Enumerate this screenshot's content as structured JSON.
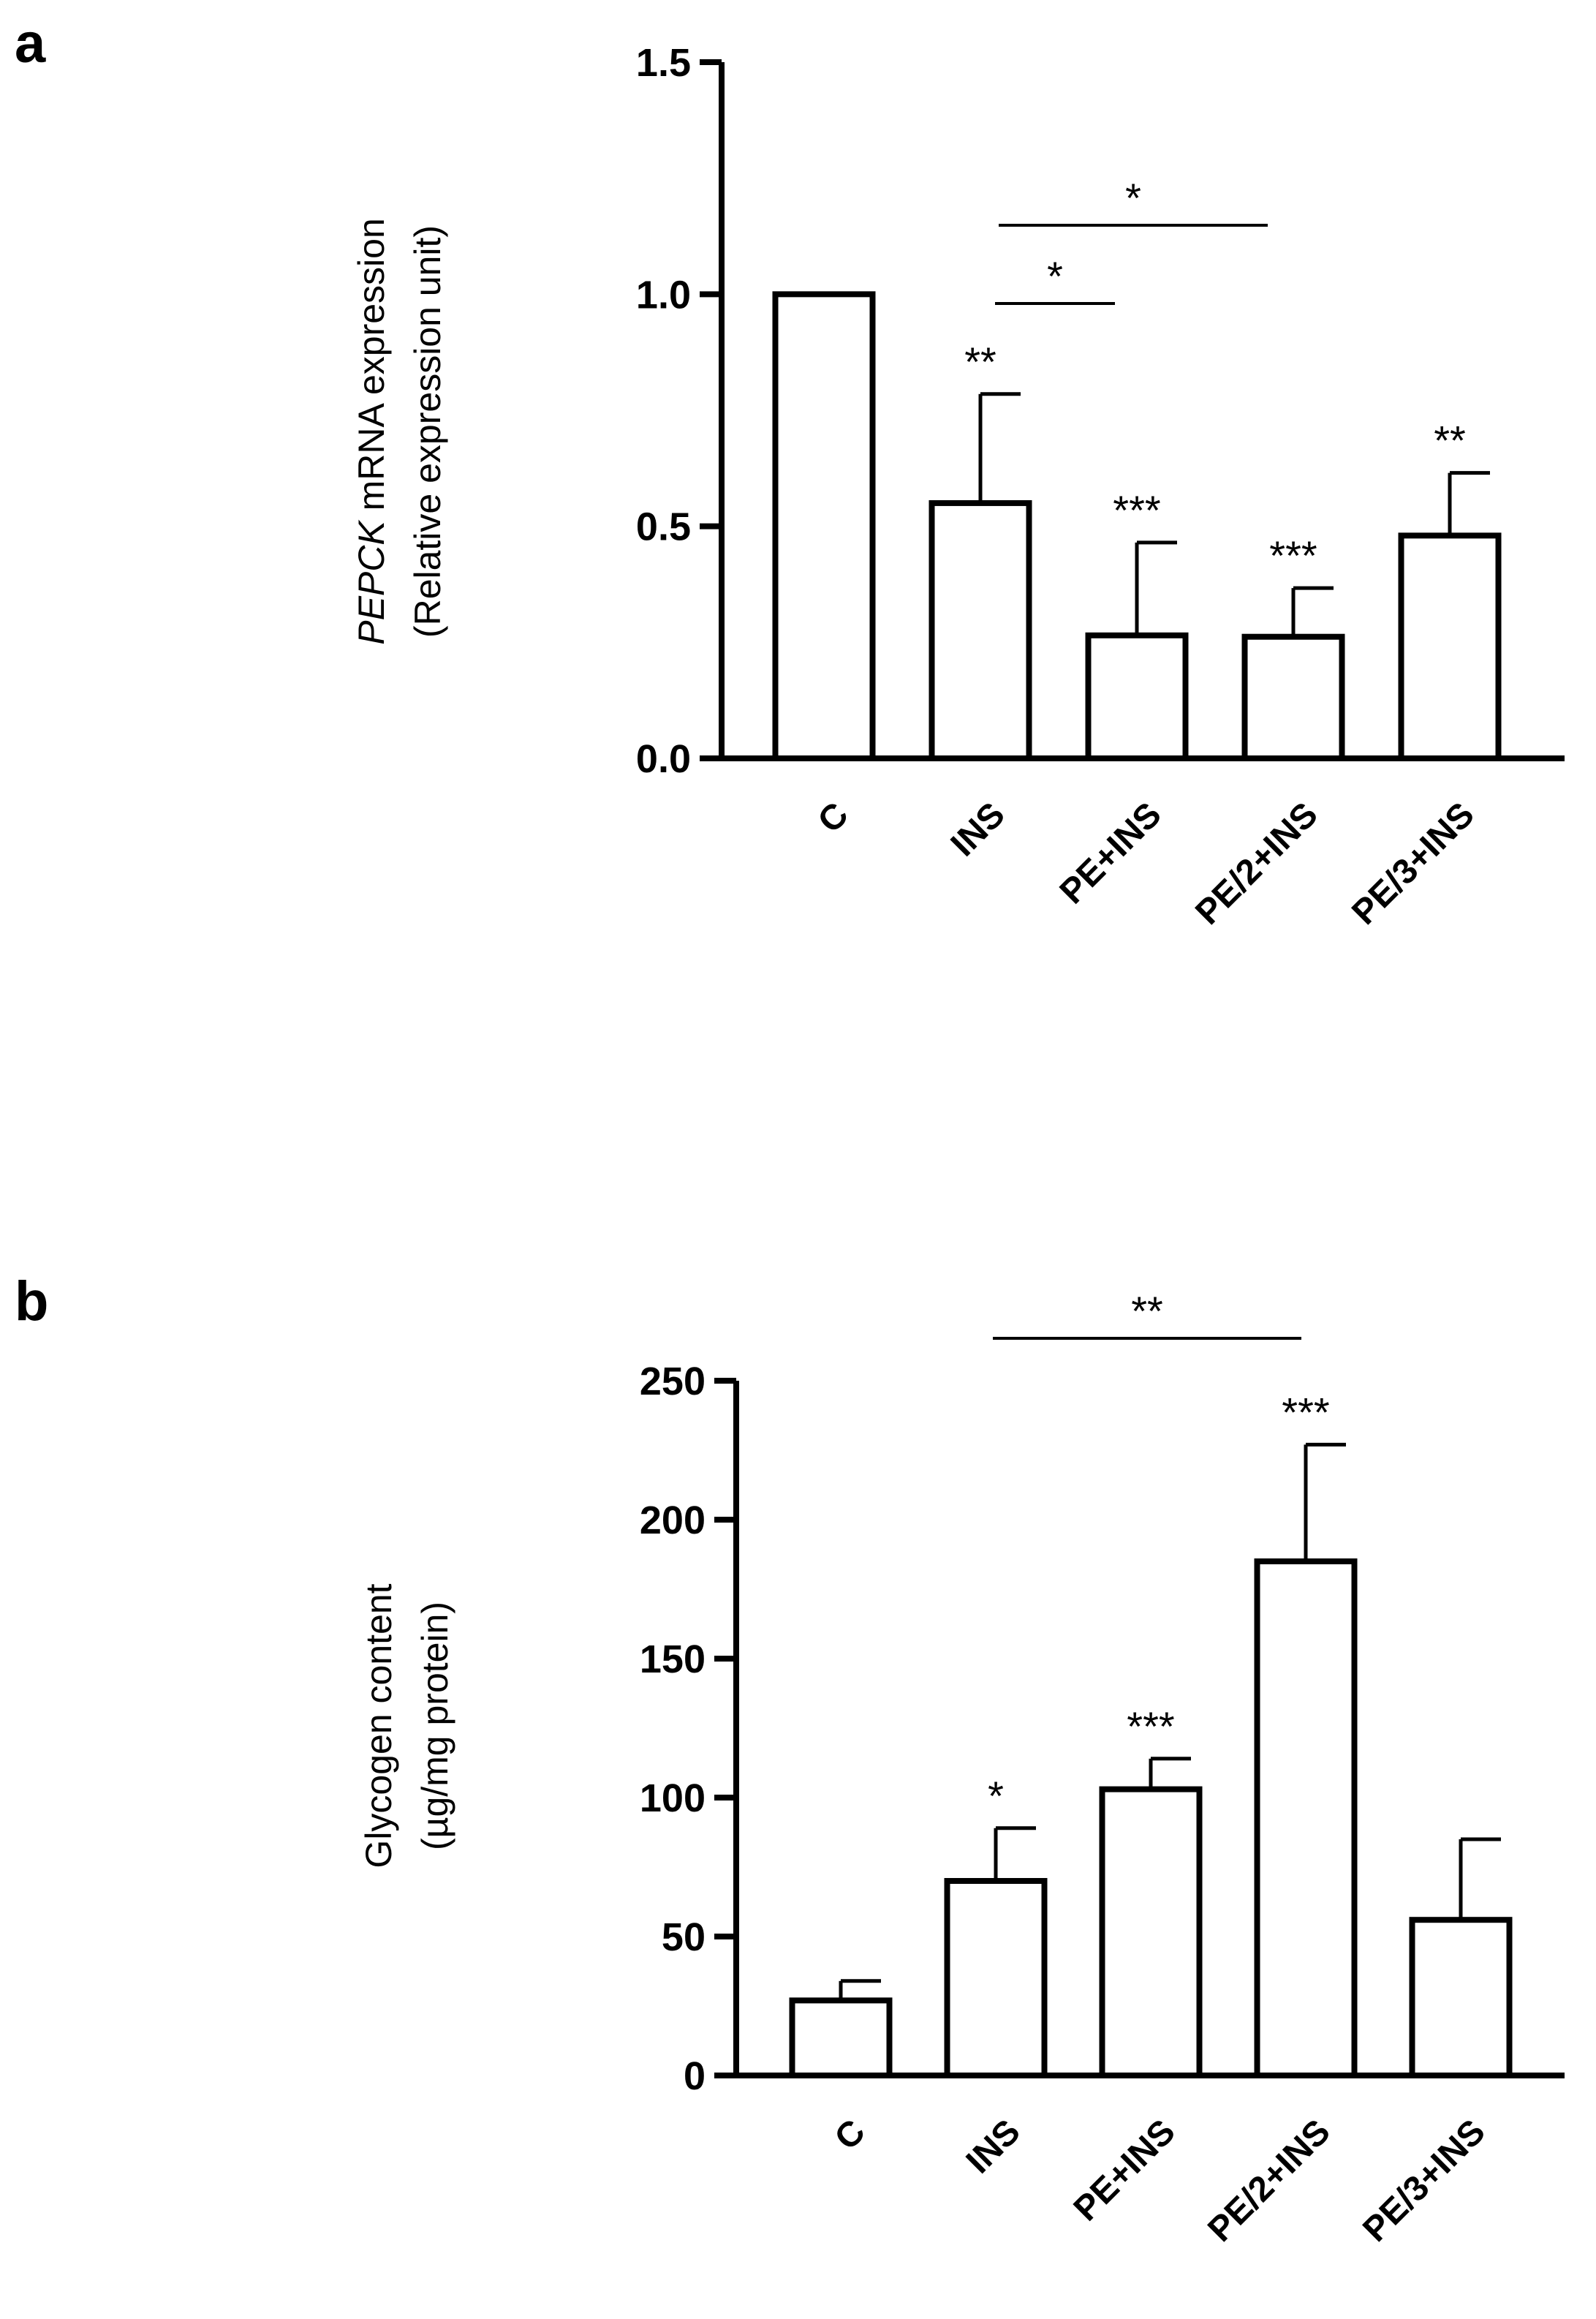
{
  "chart_data": [
    {
      "panel": "a",
      "type": "bar",
      "categories": [
        "C",
        "INS",
        "PE+INS",
        "PE/2+INS",
        "PE/3+INS"
      ],
      "values": [
        1.0,
        0.55,
        0.265,
        0.262,
        0.48
      ],
      "errors": [
        0,
        0.235,
        0.2,
        0.105,
        0.135
      ],
      "annotations": [
        "",
        "**",
        "***",
        "***",
        "**"
      ],
      "brackets": [
        {
          "from": 1,
          "to": 3,
          "label": "*"
        },
        {
          "from": 1,
          "to": 2,
          "label": "*"
        }
      ],
      "ylabel_italic": "PEPCK",
      "ylabel_rest": " mRNA expression",
      "ylabel_line2": "(Relative expression unit)",
      "ylim": [
        0,
        1.5
      ],
      "yticks": [
        0.0,
        0.5,
        1.0,
        1.5
      ],
      "ytick_labels": [
        "0.0",
        "0.5",
        "1.0",
        "1.5"
      ]
    },
    {
      "panel": "b",
      "type": "bar",
      "categories": [
        "C",
        "INS",
        "PE+INS",
        "PE/2+INS",
        "PE/3+INS"
      ],
      "values": [
        27,
        70,
        103,
        185,
        56
      ],
      "errors": [
        7,
        19,
        11,
        42,
        29
      ],
      "annotations": [
        "",
        "*",
        "***",
        "***",
        ""
      ],
      "brackets": [
        {
          "from": 1,
          "to": 3,
          "label": "**"
        }
      ],
      "ylabel_line1": "Glycogen content",
      "ylabel_line2": "(µg/mg protein)",
      "ylim": [
        0,
        250
      ],
      "yticks": [
        0,
        50,
        100,
        150,
        200,
        250
      ],
      "ytick_labels": [
        "0",
        "50",
        "100",
        "150",
        "200",
        "250"
      ]
    }
  ]
}
